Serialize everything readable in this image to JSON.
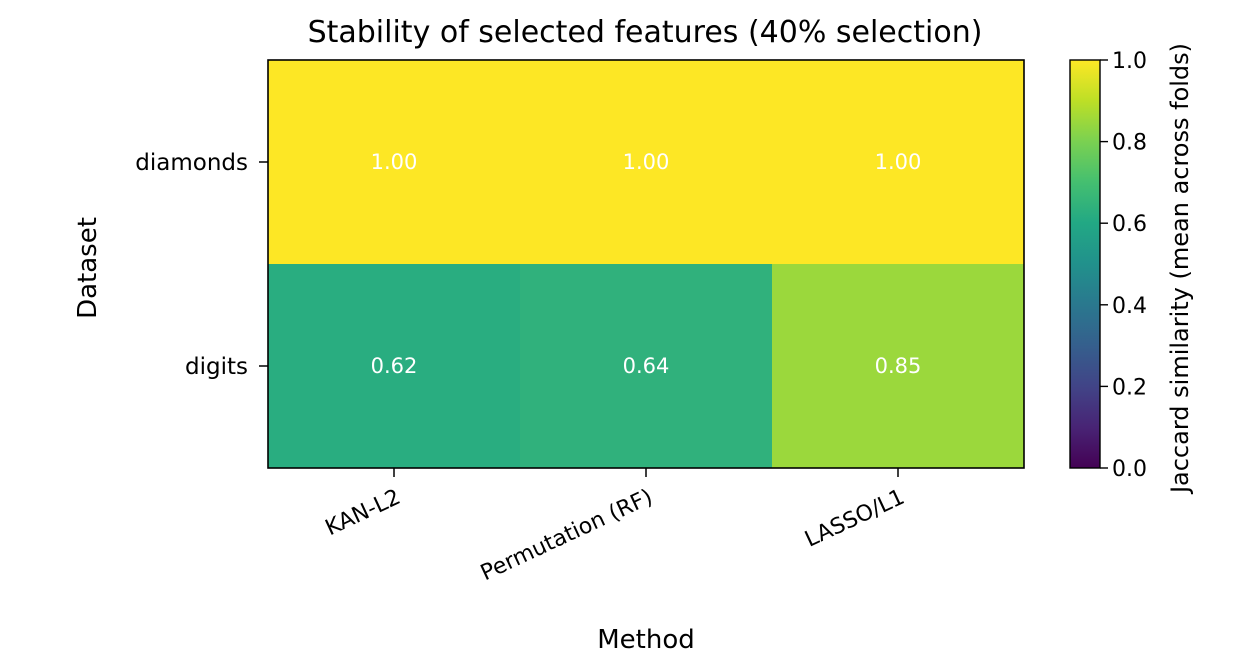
{
  "chart_data": {
    "type": "heatmap",
    "title": "Stability of selected features (40% selection)",
    "xlabel": "Method",
    "ylabel": "Dataset",
    "x_categories": [
      "KAN-L2",
      "Permutation (RF)",
      "LASSO/L1"
    ],
    "y_categories": [
      "diamonds",
      "digits"
    ],
    "values": [
      [
        1.0,
        1.0,
        1.0
      ],
      [
        0.62,
        0.64,
        0.85
      ]
    ],
    "value_labels": [
      [
        "1.00",
        "1.00",
        "1.00"
      ],
      [
        "0.62",
        "0.64",
        "0.85"
      ]
    ],
    "colorbar": {
      "label": "Jaccard similarity (mean across folds)",
      "range": [
        0.0,
        1.0
      ],
      "ticks": [
        "0.0",
        "0.2",
        "0.4",
        "0.6",
        "0.8",
        "1.0"
      ],
      "colormap": "viridis"
    },
    "grid": false
  }
}
